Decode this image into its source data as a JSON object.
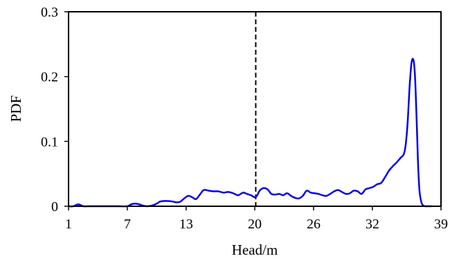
{
  "chart_data": {
    "type": "line",
    "title": "",
    "xlabel": "Head/m",
    "ylabel": "PDF",
    "xlim": [
      1,
      39
    ],
    "ylim": [
      0,
      0.3
    ],
    "x_ticks": [
      1,
      7,
      13,
      20,
      26,
      32,
      39
    ],
    "y_ticks": [
      0,
      0.1,
      0.2,
      0.3
    ],
    "y_tick_labels": [
      "0",
      "0.1",
      "0.2",
      "0.3"
    ],
    "grid": false,
    "legend": "none",
    "reference_line": {
      "x": 20.1,
      "style": "dashed",
      "color": "#000000"
    },
    "series": [
      {
        "color": "#0000ee",
        "x": [
          1,
          1.5,
          2.0,
          2.5,
          3.0,
          4.0,
          5.0,
          6.0,
          7.0,
          7.4,
          7.8,
          8.2,
          8.6,
          9.0,
          9.5,
          10.0,
          10.3,
          10.7,
          11.2,
          11.7,
          12.0,
          12.4,
          12.8,
          13.2,
          13.6,
          14.0,
          14.4,
          14.8,
          15.3,
          15.8,
          16.3,
          16.8,
          17.3,
          17.8,
          18.3,
          18.8,
          19.2,
          19.6,
          20.1,
          20.5,
          20.9,
          21.3,
          21.7,
          22.1,
          22.5,
          22.9,
          23.3,
          23.7,
          24.1,
          24.5,
          24.9,
          25.3,
          25.7,
          26.1,
          26.5,
          26.9,
          27.3,
          27.7,
          28.1,
          28.5,
          28.9,
          29.3,
          29.7,
          30.1,
          30.5,
          30.9,
          31.3,
          31.7,
          32.1,
          32.5,
          32.9,
          33.3,
          33.7,
          34.1,
          34.5,
          34.9,
          35.2,
          35.4,
          35.6,
          35.8,
          36.0,
          36.2,
          36.35,
          36.5,
          36.65,
          36.8,
          37.0,
          37.2,
          37.4,
          37.6,
          37.8,
          38.0
        ],
        "values": [
          0,
          0,
          0.003,
          0,
          0,
          0,
          0,
          0,
          0,
          0.003,
          0.004,
          0.003,
          0.001,
          0,
          0.001,
          0.004,
          0.007,
          0.008,
          0.008,
          0.007,
          0.006,
          0.007,
          0.012,
          0.016,
          0.014,
          0.011,
          0.018,
          0.025,
          0.024,
          0.023,
          0.023,
          0.021,
          0.022,
          0.02,
          0.017,
          0.021,
          0.019,
          0.017,
          0.014,
          0.024,
          0.028,
          0.026,
          0.019,
          0.018,
          0.019,
          0.017,
          0.02,
          0.016,
          0.013,
          0.012,
          0.016,
          0.024,
          0.021,
          0.02,
          0.019,
          0.017,
          0.016,
          0.019,
          0.023,
          0.025,
          0.022,
          0.019,
          0.02,
          0.024,
          0.023,
          0.019,
          0.026,
          0.028,
          0.03,
          0.034,
          0.036,
          0.045,
          0.055,
          0.062,
          0.068,
          0.075,
          0.08,
          0.095,
          0.13,
          0.185,
          0.222,
          0.225,
          0.2,
          0.14,
          0.07,
          0.025,
          0.006,
          0.001,
          0,
          0,
          0,
          0
        ]
      }
    ]
  }
}
